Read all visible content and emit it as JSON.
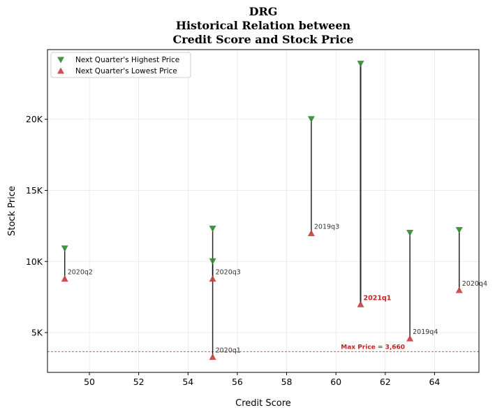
{
  "chart_data": {
    "type": "scatter",
    "title_lines": [
      "DRG",
      "Historical Relation between",
      "Credit Score and Stock Price"
    ],
    "xlabel": "Credit Score",
    "ylabel": "Stock Price",
    "xlim": [
      48.3,
      65.8
    ],
    "ylim": [
      2200,
      24900
    ],
    "xticks": [
      50,
      52,
      54,
      56,
      58,
      60,
      62,
      64
    ],
    "yticks": [
      5000,
      10000,
      15000,
      20000
    ],
    "ytick_labels": [
      "5K",
      "10K",
      "15K",
      "20K"
    ],
    "grid": true,
    "legend_position": "top-left",
    "series": [
      {
        "name": "Next Quarter's Highest Price",
        "marker": "triangle-down",
        "color": "#2e8b2e"
      },
      {
        "name": "Next Quarter's Lowest Price",
        "marker": "triangle-up",
        "color": "#c83c3c"
      }
    ],
    "points": [
      {
        "label": "2020q2",
        "x": 49,
        "high": 10900,
        "low": 8800,
        "highlight": false
      },
      {
        "label": "2020q3",
        "x": 55,
        "high": 10000,
        "low": 8800,
        "highlight": false
      },
      {
        "label": "2020q1",
        "x": 55,
        "high": 12300,
        "low": 3300,
        "highlight": false
      },
      {
        "label": "2019q3",
        "x": 59,
        "high": 20000,
        "low": 12000,
        "highlight": false
      },
      {
        "label": "2021q1",
        "x": 61,
        "high": 23900,
        "low": 7000,
        "highlight": true
      },
      {
        "label": "2019q4",
        "x": 63,
        "high": 12000,
        "low": 4600,
        "highlight": false
      },
      {
        "label": "2020q4",
        "x": 65,
        "high": 12200,
        "low": 8000,
        "highlight": false
      }
    ],
    "reference_line": {
      "value": 3660,
      "label": "Max Price = 3,660",
      "color": "#c62020"
    }
  }
}
